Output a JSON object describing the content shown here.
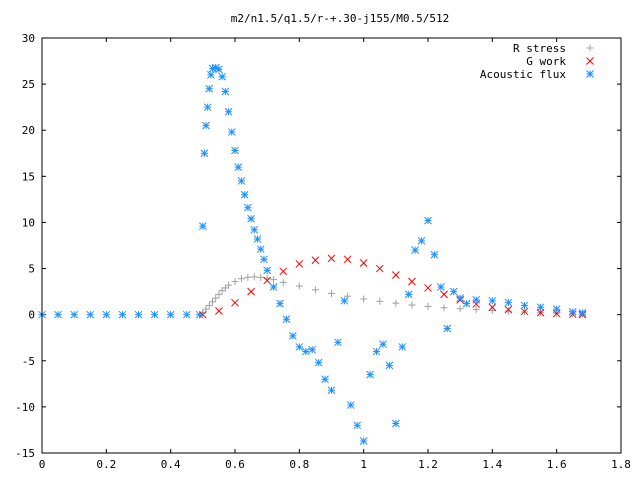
{
  "chart_data": {
    "type": "scatter",
    "title": "m2/n1.5/q1.5/r-+.30-j155/M0.5/512",
    "xlim": [
      0,
      1.8
    ],
    "ylim": [
      -15,
      30
    ],
    "x_ticks": [
      "0",
      "0.2",
      "0.4",
      "0.6",
      "0.8",
      "1",
      "1.2",
      "1.4",
      "1.6",
      "1.8"
    ],
    "y_ticks": [
      "-15",
      "-10",
      "-5",
      "0",
      "5",
      "10",
      "15",
      "20",
      "25",
      "30"
    ],
    "grid": false,
    "legend_position": "top-right",
    "series": [
      {
        "name": "R stress",
        "marker": "plus",
        "color": "#a0a0a0",
        "x": [
          0.5,
          0.51,
          0.52,
          0.53,
          0.54,
          0.55,
          0.56,
          0.57,
          0.58,
          0.6,
          0.62,
          0.64,
          0.66,
          0.68,
          0.7,
          0.72,
          0.75,
          0.8,
          0.85,
          0.9,
          0.95,
          1.0,
          1.05,
          1.1,
          1.15,
          1.2,
          1.25,
          1.3,
          1.35,
          1.4,
          1.45,
          1.5,
          1.55,
          1.6,
          1.65,
          1.68
        ],
        "y": [
          0.2,
          0.6,
          1.0,
          1.4,
          1.8,
          2.2,
          2.6,
          2.9,
          3.2,
          3.6,
          3.9,
          4.05,
          4.1,
          4.05,
          3.95,
          3.8,
          3.5,
          3.1,
          2.7,
          2.3,
          2.0,
          1.7,
          1.45,
          1.25,
          1.05,
          0.9,
          0.75,
          0.65,
          0.55,
          0.45,
          0.38,
          0.3,
          0.22,
          0.15,
          0.08,
          0.05
        ]
      },
      {
        "name": "G work",
        "marker": "cross",
        "color": "#ff0000",
        "x": [
          0.5,
          0.55,
          0.6,
          0.65,
          0.7,
          0.75,
          0.8,
          0.85,
          0.9,
          0.95,
          1.0,
          1.05,
          1.1,
          1.15,
          1.2,
          1.25,
          1.3,
          1.35,
          1.4,
          1.45,
          1.5,
          1.55,
          1.6,
          1.65,
          1.68
        ],
        "y": [
          0.0,
          0.4,
          1.3,
          2.5,
          3.7,
          4.7,
          5.5,
          5.9,
          6.1,
          6.0,
          5.6,
          5.0,
          4.3,
          3.6,
          2.9,
          2.2,
          1.6,
          1.15,
          0.8,
          0.55,
          0.35,
          0.22,
          0.12,
          0.05,
          0.02
        ]
      },
      {
        "name": "Acoustic flux",
        "marker": "star",
        "color": "#1e90ff",
        "x": [
          0.0,
          0.05,
          0.1,
          0.15,
          0.2,
          0.25,
          0.3,
          0.35,
          0.4,
          0.45,
          0.49,
          0.5,
          0.505,
          0.51,
          0.515,
          0.52,
          0.525,
          0.53,
          0.54,
          0.55,
          0.56,
          0.57,
          0.58,
          0.59,
          0.6,
          0.61,
          0.62,
          0.63,
          0.64,
          0.65,
          0.66,
          0.67,
          0.68,
          0.69,
          0.7,
          0.72,
          0.74,
          0.76,
          0.78,
          0.8,
          0.82,
          0.84,
          0.86,
          0.88,
          0.9,
          0.92,
          0.94,
          0.96,
          0.98,
          1.0,
          1.02,
          1.04,
          1.06,
          1.08,
          1.1,
          1.12,
          1.14,
          1.16,
          1.18,
          1.2,
          1.22,
          1.24,
          1.26,
          1.28,
          1.3,
          1.32,
          1.35,
          1.4,
          1.45,
          1.5,
          1.55,
          1.6,
          1.65,
          1.68
        ],
        "y": [
          0,
          0,
          0,
          0,
          0,
          0,
          0,
          0,
          0,
          0,
          0,
          9.6,
          17.5,
          20.5,
          22.5,
          24.5,
          26.0,
          26.7,
          26.8,
          26.6,
          25.8,
          24.2,
          22.0,
          19.8,
          17.8,
          16.0,
          14.5,
          13.0,
          11.6,
          10.4,
          9.2,
          8.2,
          7.1,
          6.0,
          4.8,
          3.0,
          1.2,
          -0.5,
          -2.3,
          -3.5,
          -4.0,
          -3.8,
          -5.2,
          -7.0,
          -8.2,
          -3.0,
          1.5,
          -9.8,
          -12.0,
          -13.7,
          -6.5,
          -4.0,
          -3.2,
          -5.5,
          -11.8,
          -3.5,
          2.2,
          7.0,
          8.0,
          10.2,
          6.5,
          3.0,
          -1.5,
          2.5,
          1.8,
          1.2,
          1.6,
          1.5,
          1.3,
          1.0,
          0.8,
          0.6,
          0.3,
          0.2
        ]
      }
    ]
  }
}
